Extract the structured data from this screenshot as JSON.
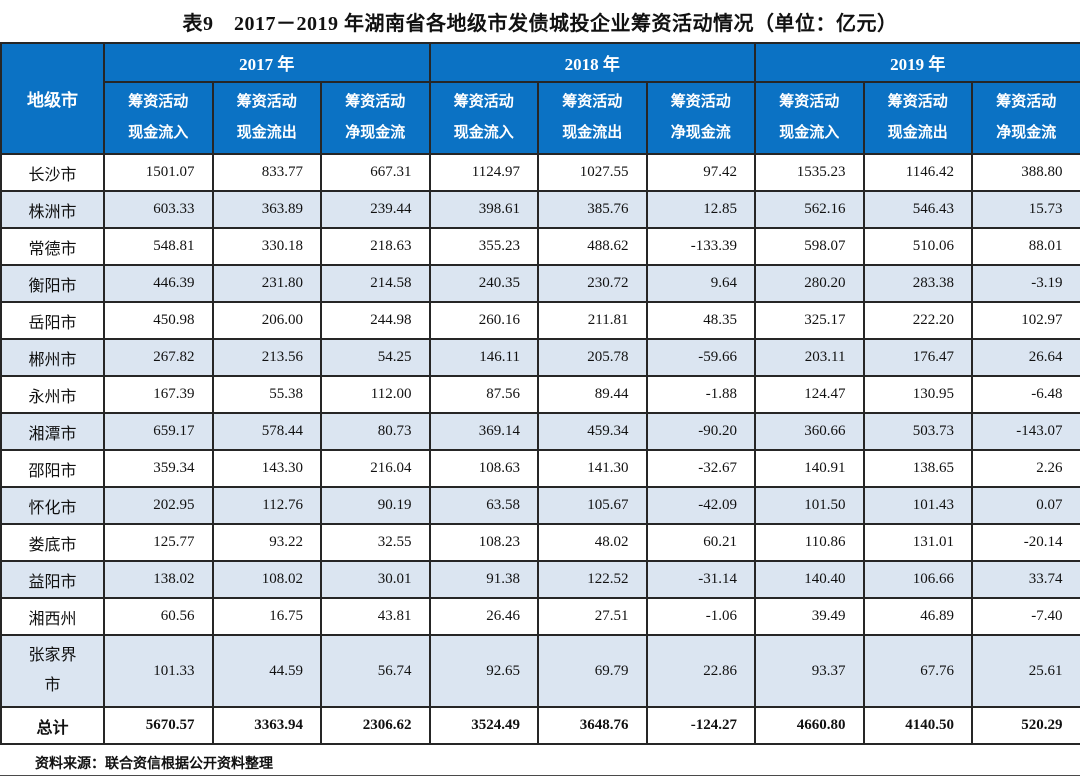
{
  "title": "表9　2017－2019 年湖南省各地级市发债城投企业筹资活动情况（单位：亿元）",
  "source": "资料来源：联合资信根据公开资料整理",
  "colors": {
    "header_bg": "#0b72c4",
    "header_fg": "#ffffff",
    "alt_row_bg": "#dbe5f1",
    "border": "#262626"
  },
  "table": {
    "corner_header": "地级市",
    "years": [
      "2017 年",
      "2018 年",
      "2019 年"
    ],
    "metric_headers": [
      {
        "line1": "筹资活动",
        "line2": "现金流入"
      },
      {
        "line1": "筹资活动",
        "line2": "现金流出"
      },
      {
        "line1": "筹资活动",
        "line2": "净现金流"
      },
      {
        "line1": "筹资活动",
        "line2": "现金流入"
      },
      {
        "line1": "筹资活动",
        "line2": "现金流出"
      },
      {
        "line1": "筹资活动",
        "line2": "净现金流"
      },
      {
        "line1": "筹资活动",
        "line2": "现金流入"
      },
      {
        "line1": "筹资活动",
        "line2": "现金流出"
      },
      {
        "line1": "筹资活动",
        "line2": "净现金流"
      }
    ],
    "rows": [
      {
        "city": "长沙市",
        "values": [
          "1501.07",
          "833.77",
          "667.31",
          "1124.97",
          "1027.55",
          "97.42",
          "1535.23",
          "1146.42",
          "388.80"
        ]
      },
      {
        "city": "株洲市",
        "values": [
          "603.33",
          "363.89",
          "239.44",
          "398.61",
          "385.76",
          "12.85",
          "562.16",
          "546.43",
          "15.73"
        ]
      },
      {
        "city": "常德市",
        "values": [
          "548.81",
          "330.18",
          "218.63",
          "355.23",
          "488.62",
          "-133.39",
          "598.07",
          "510.06",
          "88.01"
        ]
      },
      {
        "city": "衡阳市",
        "values": [
          "446.39",
          "231.80",
          "214.58",
          "240.35",
          "230.72",
          "9.64",
          "280.20",
          "283.38",
          "-3.19"
        ]
      },
      {
        "city": "岳阳市",
        "values": [
          "450.98",
          "206.00",
          "244.98",
          "260.16",
          "211.81",
          "48.35",
          "325.17",
          "222.20",
          "102.97"
        ]
      },
      {
        "city": "郴州市",
        "values": [
          "267.82",
          "213.56",
          "54.25",
          "146.11",
          "205.78",
          "-59.66",
          "203.11",
          "176.47",
          "26.64"
        ]
      },
      {
        "city": "永州市",
        "values": [
          "167.39",
          "55.38",
          "112.00",
          "87.56",
          "89.44",
          "-1.88",
          "124.47",
          "130.95",
          "-6.48"
        ]
      },
      {
        "city": "湘潭市",
        "values": [
          "659.17",
          "578.44",
          "80.73",
          "369.14",
          "459.34",
          "-90.20",
          "360.66",
          "503.73",
          "-143.07"
        ]
      },
      {
        "city": "邵阳市",
        "values": [
          "359.34",
          "143.30",
          "216.04",
          "108.63",
          "141.30",
          "-32.67",
          "140.91",
          "138.65",
          "2.26"
        ]
      },
      {
        "city": "怀化市",
        "values": [
          "202.95",
          "112.76",
          "90.19",
          "63.58",
          "105.67",
          "-42.09",
          "101.50",
          "101.43",
          "0.07"
        ]
      },
      {
        "city": "娄底市",
        "values": [
          "125.77",
          "93.22",
          "32.55",
          "108.23",
          "48.02",
          "60.21",
          "110.86",
          "131.01",
          "-20.14"
        ]
      },
      {
        "city": "益阳市",
        "values": [
          "138.02",
          "108.02",
          "30.01",
          "91.38",
          "122.52",
          "-31.14",
          "140.40",
          "106.66",
          "33.74"
        ]
      },
      {
        "city": "湘西州",
        "values": [
          "60.56",
          "16.75",
          "43.81",
          "26.46",
          "27.51",
          "-1.06",
          "39.49",
          "46.89",
          "-7.40"
        ]
      },
      {
        "city": "张家界市",
        "values": [
          "101.33",
          "44.59",
          "56.74",
          "92.65",
          "69.79",
          "22.86",
          "93.37",
          "67.76",
          "25.61"
        ]
      }
    ],
    "total_row": {
      "city": "总计",
      "values": [
        "5670.57",
        "3363.94",
        "2306.62",
        "3524.49",
        "3648.76",
        "-124.27",
        "4660.80",
        "4140.50",
        "520.29"
      ]
    }
  }
}
